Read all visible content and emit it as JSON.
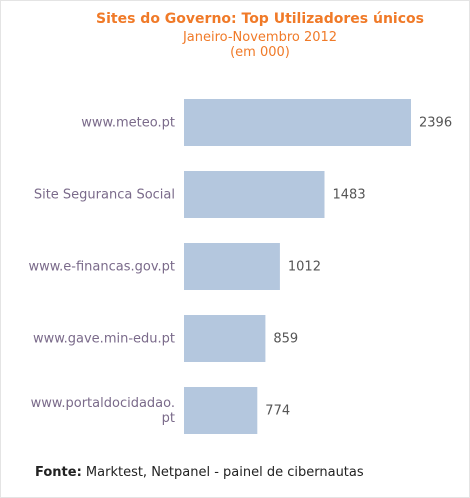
{
  "chart_data": {
    "type": "bar",
    "orientation": "horizontal",
    "title": "Sites do Governo: Top Utilizadores únicos",
    "subtitle_lines": [
      "Janeiro-Novembro 2012",
      "(em 000)"
    ],
    "categories": [
      "www.meteo.pt",
      "Site Seguranca Social",
      "www.e-financas.gov.pt",
      "www.gave.min-edu.pt",
      "www.portaldocidadao.pt"
    ],
    "category_display_lines": [
      [
        "www.meteo.pt"
      ],
      [
        "Site Seguranca Social"
      ],
      [
        "www.e-financas.gov.pt"
      ],
      [
        "www.gave.min-edu.pt"
      ],
      [
        "www.portaldocidadao.",
        "pt"
      ]
    ],
    "values": [
      2396,
      1483,
      1012,
      859,
      774
    ],
    "xlim": [
      0,
      2396
    ],
    "grid": false,
    "legend": "none",
    "bar_color": "#b4c7de",
    "title_color": "#f07a28"
  },
  "source": {
    "label": "Fonte:",
    "text": " Marktest, Netpanel - painel de cibernautas"
  }
}
